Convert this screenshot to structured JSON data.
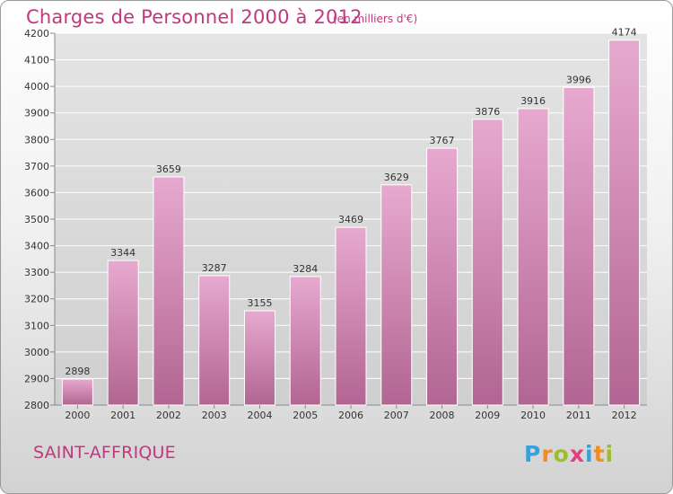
{
  "header": {
    "title": "Charges de Personnel 2000 à 2012",
    "unit": "(en milliers d'€)"
  },
  "footer": {
    "place": "SAINT-AFFRIQUE",
    "logo": {
      "text": "Proxiti",
      "letters": [
        {
          "ch": "P",
          "color": "#3aa0d8"
        },
        {
          "ch": "r",
          "color": "#f28c1e"
        },
        {
          "ch": "o",
          "color": "#9fbd2a"
        },
        {
          "ch": "x",
          "color": "#e23f7f"
        },
        {
          "ch": "i",
          "color": "#3aa0d8"
        },
        {
          "ch": "t",
          "color": "#f28c1e"
        },
        {
          "ch": "i",
          "color": "#9fbd2a"
        }
      ]
    }
  },
  "colors": {
    "title": "#c2377e",
    "bar_top": "#e7a9cf",
    "bar_bottom": "#b26592",
    "grid": "#ffffff",
    "axis_text": "#333333"
  },
  "chart_data": {
    "type": "bar",
    "title": "Charges de Personnel 2000 à 2012",
    "subtitle": "(en milliers d'€)",
    "xlabel": "",
    "ylabel": "",
    "categories": [
      "2000",
      "2001",
      "2002",
      "2003",
      "2004",
      "2005",
      "2006",
      "2007",
      "2008",
      "2009",
      "2010",
      "2011",
      "2012"
    ],
    "values": [
      2898,
      3344,
      3659,
      3287,
      3155,
      3284,
      3469,
      3629,
      3767,
      3876,
      3916,
      3996,
      4174
    ],
    "ylim": [
      2800,
      4200
    ],
    "yticks": [
      2800,
      2900,
      3000,
      3100,
      3200,
      3300,
      3400,
      3500,
      3600,
      3700,
      3800,
      3900,
      4000,
      4100,
      4200
    ],
    "grid": true,
    "data_labels": true
  }
}
